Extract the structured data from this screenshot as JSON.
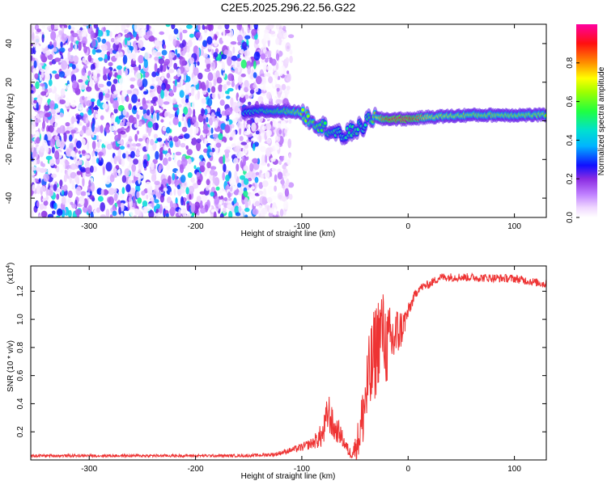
{
  "chart_data": [
    {
      "type": "heatmap",
      "title": "C2E5.2025.296.22.56.G22",
      "xlabel": "Height of straight line (km)",
      "ylabel": "Frequency (Hz)",
      "xlim": [
        -355,
        130
      ],
      "ylim": [
        -50,
        50
      ],
      "xticks": [
        -300,
        -200,
        -100,
        0,
        100
      ],
      "yticks": [
        -40,
        -20,
        0,
        20,
        40
      ],
      "colorbar": {
        "label": "Normalized spectral amplitude",
        "range": [
          0,
          1
        ],
        "ticks": [
          0.0,
          0.2,
          0.4,
          0.6,
          0.8
        ],
        "colors": [
          "#ffffff",
          "#e8c8ff",
          "#c080ff",
          "#8a2be2",
          "#0000ff",
          "#00c8ff",
          "#00ff80",
          "#80ff00",
          "#ffff00",
          "#ff8000",
          "#ff0000",
          "#ff00a0"
        ]
      },
      "ridge": {
        "x": [
          -155,
          -140,
          -125,
          -110,
          -100,
          -90,
          -80,
          -70,
          -62,
          -55,
          -48,
          -42,
          -35,
          -25,
          -15,
          0,
          20,
          60,
          100,
          130
        ],
        "freq": [
          4,
          5,
          5,
          5,
          4,
          0,
          -3,
          -6,
          -8,
          -6,
          -4,
          -3,
          2,
          1,
          1,
          1,
          2,
          3,
          3,
          3
        ],
        "amplitude": [
          0.45,
          0.5,
          0.55,
          0.6,
          0.65,
          0.6,
          0.55,
          0.5,
          0.45,
          0.5,
          0.5,
          0.45,
          0.55,
          0.8,
          0.95,
          0.95,
          0.7,
          0.65,
          0.65,
          0.65
        ]
      },
      "noise_region_x": [
        -355,
        -140
      ],
      "noise_amplitude": 0.3
    },
    {
      "type": "line",
      "title": "",
      "xlabel": "Height of straight line (km)",
      "ylabel": "SNR (10 * v/v)",
      "ylabel_scale": "(x10",
      "ylabel_scale_exp": "4",
      "ylabel_scale_close": ")",
      "xlim": [
        -355,
        130
      ],
      "ylim": [
        0,
        1.38
      ],
      "xticks": [
        -300,
        -200,
        -100,
        0,
        100
      ],
      "yticks": [
        0.2,
        0.4,
        0.6,
        0.8,
        1.0,
        1.2
      ],
      "color": "#ee3333",
      "series": [
        {
          "name": "SNR",
          "x": [
            -355,
            -300,
            -250,
            -200,
            -150,
            -125,
            -110,
            -100,
            -90,
            -80,
            -75,
            -70,
            -65,
            -60,
            -55,
            -50,
            -45,
            -40,
            -35,
            -30,
            -25,
            -20,
            -15,
            -10,
            -5,
            0,
            5,
            10,
            20,
            30,
            50,
            100,
            130
          ],
          "y": [
            0.03,
            0.03,
            0.03,
            0.03,
            0.03,
            0.04,
            0.07,
            0.09,
            0.12,
            0.18,
            0.35,
            0.22,
            0.2,
            0.12,
            0.05,
            0.08,
            0.2,
            0.45,
            0.62,
            0.8,
            0.95,
            0.8,
            0.85,
            0.9,
            0.95,
            1.05,
            1.15,
            1.22,
            1.25,
            1.3,
            1.3,
            1.29,
            1.25
          ],
          "noise": [
            0.01,
            0.01,
            0.01,
            0.01,
            0.01,
            0.015,
            0.02,
            0.03,
            0.04,
            0.1,
            0.15,
            0.1,
            0.08,
            0.05,
            0.04,
            0.08,
            0.18,
            0.3,
            0.35,
            0.35,
            0.3,
            0.3,
            0.25,
            0.2,
            0.12,
            0.06,
            0.04,
            0.03,
            0.03,
            0.03,
            0.03,
            0.03,
            0.03
          ]
        }
      ]
    }
  ]
}
